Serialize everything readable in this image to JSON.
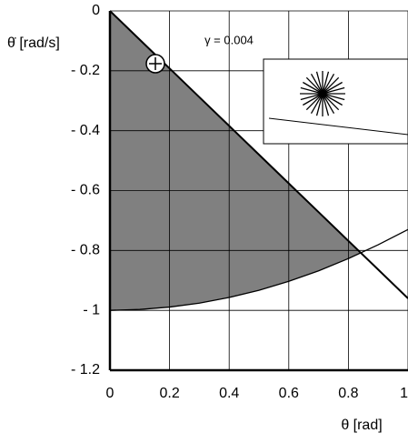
{
  "chart_data": {
    "type": "line",
    "y_label": "θ̇ [rad/s]",
    "x_label": "θ [rad]",
    "annotation": "γ = 0.004",
    "x": [
      0,
      0.1,
      0.2,
      0.3,
      0.4,
      0.5,
      0.6,
      0.7,
      0.8,
      0.9,
      1.0
    ],
    "series": [
      {
        "color": "#000000",
        "values": [
          0,
          -0.096,
          -0.192,
          -0.288,
          -0.384,
          -0.48,
          -0.576,
          -0.672,
          -0.768,
          -0.864,
          -0.96
        ]
      },
      {
        "color": "#000000",
        "values": [
          -1,
          -0.997,
          -0.989,
          -0.976,
          -0.957,
          -0.933,
          -0.903,
          -0.868,
          -0.827,
          -0.781,
          -0.73
        ]
      }
    ],
    "fill_color": "#808080",
    "xlim": [
      0,
      1
    ],
    "ylim": [
      -1.2,
      0
    ],
    "xticks": [
      0,
      0.2,
      0.4,
      0.6,
      0.8,
      1
    ],
    "yticks": [
      0,
      {
        "value": -0.2,
        "label": "- 0.2"
      },
      {
        "value": -0.4,
        "label": "- 0.4"
      },
      {
        "value": -0.6,
        "label": "- 0.6"
      },
      {
        "value": -0.8,
        "label": "- 0.8"
      },
      {
        "value": -1,
        "label": "- 1"
      },
      {
        "value": -1.2,
        "label": "- 1.2"
      }
    ],
    "grid": true
  }
}
